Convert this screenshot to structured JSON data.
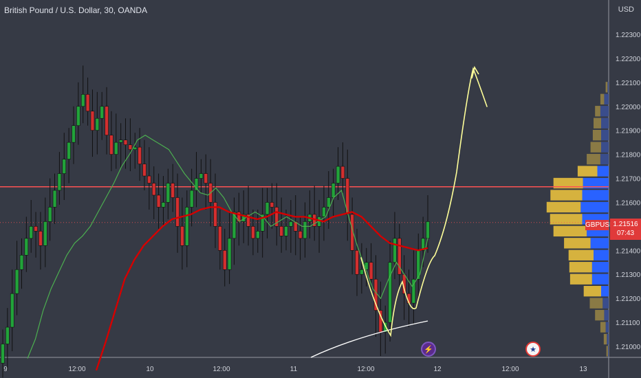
{
  "header": {
    "title": "British Pound / U.S. Dollar, 30, OANDA",
    "currency": "USD"
  },
  "badge": {
    "symbol": "GBPUSD",
    "price": "1.21516",
    "countdown": "07:43"
  },
  "events": [
    {
      "icon": "lightning-icon",
      "glyph": "⚡"
    },
    {
      "icon": "us-flag-icon",
      "glyph": "★"
    }
  ],
  "colors": {
    "background": "#363a45",
    "up_candle": "#22a33a",
    "down_candle": "#d32f2f",
    "ma_slow": "#d50000",
    "ma_fast": "#4caf50",
    "resistance": "#ff5252",
    "annotation": "#ffff99",
    "profile_gold": "#d6b23e",
    "profile_blue": "#2962ff"
  },
  "chart_data": {
    "type": "candlestick",
    "symbol": "GBPUSD",
    "interval": "30",
    "source": "OANDA",
    "ylim": [
      1.2095,
      1.224
    ],
    "y_ticks": [
      "1.22300",
      "1.22200",
      "1.22100",
      "1.22000",
      "1.21900",
      "1.21800",
      "1.21700",
      "1.21600",
      "1.21500",
      "1.21400",
      "1.21300",
      "1.21200",
      "1.21100",
      "1.21000"
    ],
    "x_ticks": [
      "9",
      "12:00",
      "10",
      "12:00",
      "11",
      "12:00",
      "12",
      "12:00",
      "13"
    ],
    "resistance_level": 1.21665,
    "current_price": 1.21516,
    "close_series": [
      1.2101,
      1.2108,
      1.2122,
      1.2132,
      1.2138,
      1.2145,
      1.215,
      1.2148,
      1.2142,
      1.2152,
      1.2158,
      1.2165,
      1.2172,
      1.2178,
      1.2185,
      1.2192,
      1.22,
      1.2205,
      1.2198,
      1.219,
      1.2195,
      1.22,
      1.2188,
      1.218,
      1.2185,
      1.2186,
      1.2184,
      1.2182,
      1.2183,
      1.2176,
      1.2171,
      1.2168,
      1.2163,
      1.2158,
      1.216,
      1.2168,
      1.2162,
      1.215,
      1.2142,
      1.2158,
      1.2165,
      1.217,
      1.2172,
      1.2168,
      1.216,
      1.215,
      1.214,
      1.2132,
      1.2145,
      1.2156,
      1.2152,
      1.2155,
      1.215,
      1.2145,
      1.2148,
      1.2155,
      1.216,
      1.2158,
      1.215,
      1.2146,
      1.215,
      1.2152,
      1.2148,
      1.2145,
      1.2152,
      1.2155,
      1.215,
      1.2154,
      1.2158,
      1.2162,
      1.2168,
      1.2175,
      1.217,
      1.2155,
      1.214,
      1.213,
      1.2132,
      1.2135,
      1.2128,
      1.2115,
      1.2106,
      1.211,
      1.2135,
      1.2145,
      1.213,
      1.2122,
      1.2118,
      1.2128,
      1.214,
      1.2145,
      1.2152
    ],
    "ma_fast": [
      1.2095,
      1.2103,
      1.2115,
      1.2124,
      1.2131,
      1.2138,
      1.2143,
      1.2146,
      1.215,
      1.2156,
      1.2162,
      1.2168,
      1.2175,
      1.218,
      1.2186,
      1.2188,
      1.2186,
      1.2184,
      1.2182,
      1.2177,
      1.2172,
      1.2168,
      1.2164,
      1.2163,
      1.2166,
      1.2162,
      1.2156,
      1.2152,
      1.2154,
      1.2156,
      1.2154,
      1.215,
      1.2152,
      1.2154,
      1.2152,
      1.215,
      1.215,
      1.2152,
      1.2154,
      1.2162,
      1.2165,
      1.2153,
      1.2142,
      1.2133,
      1.2124,
      1.212,
      1.2128,
      1.2135,
      1.213,
      1.2125,
      1.213,
      1.2145
    ],
    "ma_slow": [
      1.209,
      1.2102,
      1.2115,
      1.2128,
      1.2136,
      1.2142,
      1.2146,
      1.215,
      1.2153,
      1.2154,
      1.2155,
      1.2157,
      1.2158,
      1.2158,
      1.2156,
      1.2155,
      1.2154,
      1.2153,
      1.2154,
      1.2156,
      1.2155,
      1.2154,
      1.2154,
      1.2153,
      1.2152,
      1.2154,
      1.2155,
      1.2156,
      1.2154,
      1.215,
      1.2146,
      1.2143,
      1.2142,
      1.2141,
      1.214,
      1.2141
    ],
    "volume_profile": [
      {
        "price": 1.2208,
        "buy": 5,
        "sell": 3
      },
      {
        "price": 1.2203,
        "buy": 10,
        "sell": 12
      },
      {
        "price": 1.2198,
        "buy": 14,
        "sell": 22
      },
      {
        "price": 1.2193,
        "buy": 20,
        "sell": 20
      },
      {
        "price": 1.2188,
        "buy": 22,
        "sell": 20
      },
      {
        "price": 1.2183,
        "buy": 28,
        "sell": 20
      },
      {
        "price": 1.2178,
        "buy": 36,
        "sell": 22
      },
      {
        "price": 1.2173,
        "buy": 52,
        "sell": 30
      },
      {
        "price": 1.2168,
        "buy": 78,
        "sell": 68
      },
      {
        "price": 1.2163,
        "buy": 84,
        "sell": 70
      },
      {
        "price": 1.2158,
        "buy": 90,
        "sell": 74
      },
      {
        "price": 1.2153,
        "buy": 85,
        "sell": 70
      },
      {
        "price": 1.2148,
        "buy": 88,
        "sell": 58
      },
      {
        "price": 1.2143,
        "buy": 70,
        "sell": 48
      },
      {
        "price": 1.2138,
        "buy": 66,
        "sell": 40
      },
      {
        "price": 1.2133,
        "buy": 60,
        "sell": 44
      },
      {
        "price": 1.2128,
        "buy": 58,
        "sell": 44
      },
      {
        "price": 1.2123,
        "buy": 46,
        "sell": 20
      },
      {
        "price": 1.2118,
        "buy": 34,
        "sell": 16
      },
      {
        "price": 1.2113,
        "buy": 24,
        "sell": 12
      },
      {
        "price": 1.2108,
        "buy": 14,
        "sell": 8
      },
      {
        "price": 1.2103,
        "buy": 8,
        "sell": 5
      },
      {
        "price": 1.2098,
        "buy": 4,
        "sell": 2
      }
    ]
  }
}
